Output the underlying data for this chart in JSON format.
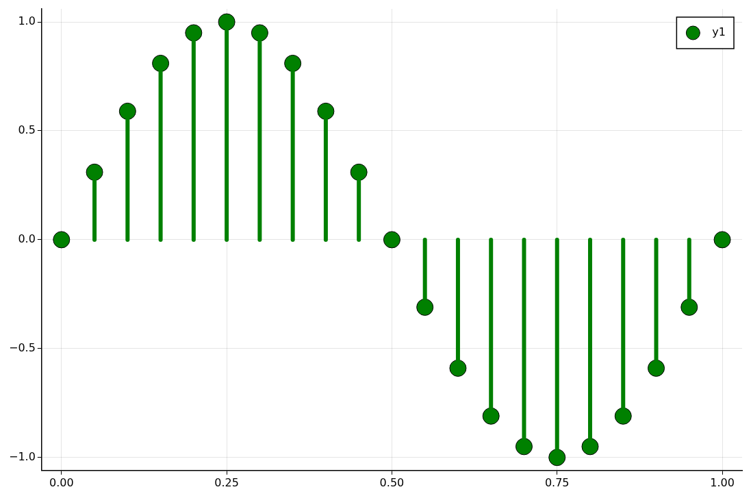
{
  "chart_data": {
    "type": "lollipop",
    "x": [
      0,
      0.05,
      0.1,
      0.15,
      0.2,
      0.25,
      0.3,
      0.35,
      0.4,
      0.45,
      0.5,
      0.55,
      0.6,
      0.65,
      0.7,
      0.75,
      0.8,
      0.85,
      0.9,
      0.95,
      1
    ],
    "series": [
      {
        "name": "y1",
        "color": "#008000",
        "values": [
          0,
          0.31,
          0.59,
          0.81,
          0.95,
          1,
          0.95,
          0.81,
          0.59,
          0.31,
          0,
          -0.31,
          -0.59,
          -0.81,
          -0.95,
          -1,
          -0.95,
          -0.81,
          -0.59,
          -0.31,
          0
        ]
      }
    ],
    "xlim": [
      -0.03,
      1.03
    ],
    "ylim": [
      -1.06,
      1.06
    ],
    "xticks": [
      {
        "value": 0,
        "label": "0.00"
      },
      {
        "value": 0.25,
        "label": "0.25"
      },
      {
        "value": 0.5,
        "label": "0.50"
      },
      {
        "value": 0.75,
        "label": "0.75"
      },
      {
        "value": 1,
        "label": "1.00"
      }
    ],
    "yticks": [
      {
        "value": -1,
        "label": "−1.0"
      },
      {
        "value": -0.5,
        "label": "−0.5"
      },
      {
        "value": 0,
        "label": "0.0"
      },
      {
        "value": 0.5,
        "label": "0.5"
      },
      {
        "value": 1,
        "label": "1.0"
      }
    ],
    "grid": true,
    "legend": "top right",
    "marker": "circle"
  }
}
